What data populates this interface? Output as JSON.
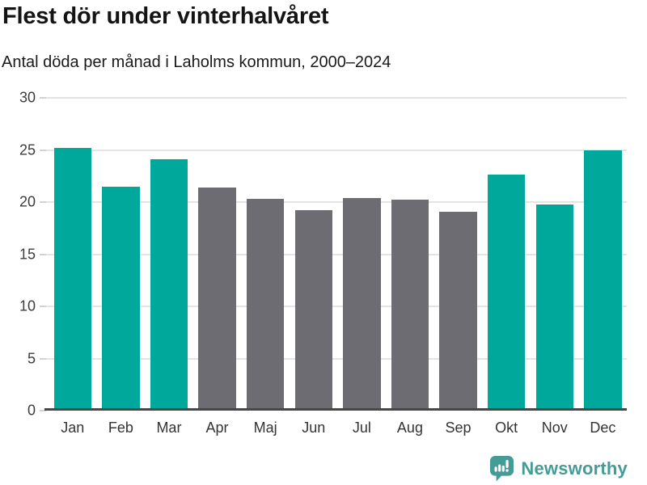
{
  "header": {
    "title": "Flest dör under vinterhalvåret",
    "subtitle": "Antal döda per månad i Laholms kommun, 2000–2024"
  },
  "chart_data": {
    "type": "bar",
    "title": "Flest dör under vinterhalvåret",
    "subtitle": "Antal döda per månad i Laholms kommun, 2000–2024",
    "categories": [
      "Jan",
      "Feb",
      "Mar",
      "Apr",
      "Maj",
      "Jun",
      "Jul",
      "Aug",
      "Sep",
      "Okt",
      "Nov",
      "Dec"
    ],
    "values": [
      25.2,
      21.5,
      24.1,
      21.4,
      20.3,
      19.2,
      20.4,
      20.2,
      19.1,
      22.6,
      19.8,
      25.0
    ],
    "bar_colors": [
      "#00a79b",
      "#00a79b",
      "#00a79b",
      "#6e6c73",
      "#6e6c73",
      "#6e6c73",
      "#6e6c73",
      "#6e6c73",
      "#6e6c73",
      "#00a79b",
      "#00a79b",
      "#00a79b"
    ],
    "highlight_color": "#00a79b",
    "base_color": "#6e6c73",
    "xlabel": "",
    "ylabel": "",
    "ylim": [
      0,
      30
    ],
    "yticks": [
      0,
      5,
      10,
      15,
      20,
      25,
      30
    ],
    "grid": "horizontal",
    "legend": "none"
  },
  "footer": {
    "brand": "Newsworthy",
    "brand_color": "#459b95"
  }
}
